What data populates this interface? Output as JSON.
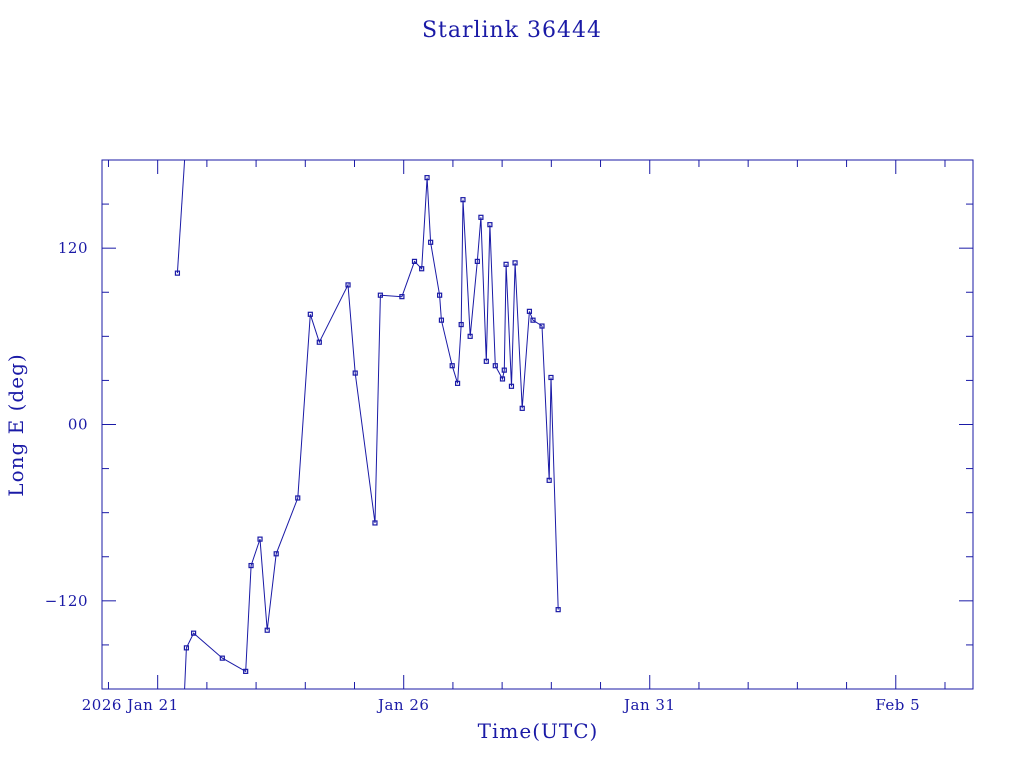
{
  "chart_data": {
    "type": "line",
    "title": "Starlink 36444",
    "xlabel": "Time(UTC)",
    "ylabel": "Long E (deg)",
    "xlim": [
      2026.049,
      2026.0975
    ],
    "ylim": [
      -180,
      180
    ],
    "x_ticks": [
      {
        "label": "2026 Jan 21",
        "x": 2026.0521
      },
      {
        "label": "Jan 26",
        "x": 2026.0658
      },
      {
        "label": "Jan 31",
        "x": 2026.0795
      },
      {
        "label": "Feb  5",
        "x": 2026.0932
      }
    ],
    "y_ticks": [
      {
        "label": "−120",
        "y": -120
      },
      {
        "label": "00",
        "y": 0
      },
      {
        "label": "120",
        "y": 120
      }
    ],
    "grid": false,
    "series": [
      {
        "color": "#1a1aa6",
        "segments": [
          [
            [
              2026.0532,
              103
            ],
            [
              2026.0536,
              180
            ]
          ],
          [
            [
              2026.0536,
              -180
            ],
            [
              2026.0537,
              -152
            ],
            [
              2026.0541,
              -142
            ],
            [
              2026.0557,
              -159
            ],
            [
              2026.057,
              -168
            ],
            [
              2026.0573,
              -96
            ],
            [
              2026.0578,
              -78
            ],
            [
              2026.0582,
              -140
            ],
            [
              2026.0587,
              -88
            ],
            [
              2026.0599,
              -50
            ],
            [
              2026.0606,
              75
            ],
            [
              2026.0611,
              56
            ],
            [
              2026.0627,
              95
            ],
            [
              2026.0631,
              35
            ],
            [
              2026.0642,
              -67
            ],
            [
              2026.0645,
              88
            ],
            [
              2026.0657,
              87
            ],
            [
              2026.0664,
              111
            ],
            [
              2026.0668,
              106
            ],
            [
              2026.0671,
              168
            ],
            [
              2026.0673,
              124
            ],
            [
              2026.0678,
              88
            ],
            [
              2026.0679,
              71
            ],
            [
              2026.0685,
              40
            ],
            [
              2026.0688,
              28
            ],
            [
              2026.069,
              68
            ],
            [
              2026.0691,
              153
            ],
            [
              2026.0695,
              60
            ],
            [
              2026.0699,
              111
            ],
            [
              2026.0701,
              141
            ],
            [
              2026.0704,
              43
            ],
            [
              2026.0706,
              136
            ],
            [
              2026.0709,
              40
            ],
            [
              2026.0713,
              31
            ],
            [
              2026.0714,
              37
            ],
            [
              2026.0715,
              109
            ],
            [
              2026.0718,
              26
            ],
            [
              2026.072,
              110
            ],
            [
              2026.0724,
              11
            ],
            [
              2026.0728,
              77
            ],
            [
              2026.073,
              71
            ],
            [
              2026.0735,
              67
            ],
            [
              2026.0739,
              -38
            ],
            [
              2026.074,
              32
            ],
            [
              2026.0744,
              -126
            ]
          ]
        ]
      }
    ]
  }
}
